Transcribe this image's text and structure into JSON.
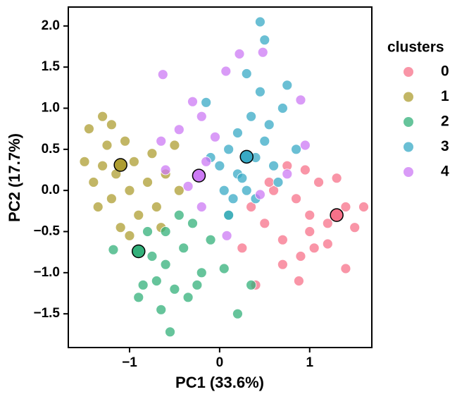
{
  "chart_data": {
    "type": "scatter",
    "xlabel": "PC1 (33.6%)",
    "ylabel": "PC2 (17.7%)",
    "legend_title": "clusters",
    "legend_position": "outside right",
    "xlim": [
      -1.68,
      1.69
    ],
    "ylim": [
      -1.91,
      2.23
    ],
    "xticks": [
      {
        "value": -1,
        "label": "−1"
      },
      0,
      1
    ],
    "yticks": [
      {
        "value": -1.5,
        "label": "−1.5"
      },
      {
        "value": -1,
        "label": "−1.0"
      },
      {
        "value": -0.5,
        "label": "−0.5"
      },
      {
        "value": 0,
        "label": "0.0"
      },
      0.5,
      {
        "value": 1,
        "label": "1.0"
      },
      1.5,
      {
        "value": 2,
        "label": "2.0"
      }
    ],
    "series": [
      {
        "name": "0",
        "color": "#f77189",
        "x": [
          0.85,
          1.0,
          1.2,
          1.4,
          0.7,
          0.9,
          1.1,
          1.3,
          0.6,
          0.5,
          1.5,
          0.4,
          0.7,
          1.0,
          1.2,
          0.95,
          0.35,
          1.4,
          0.25,
          0.88,
          1.6,
          0.75,
          1.05,
          0.55
        ],
        "y": [
          -0.1,
          -0.3,
          -0.4,
          -0.2,
          -0.6,
          -0.8,
          0.1,
          0.15,
          0.0,
          -0.4,
          -0.45,
          -1.15,
          -0.9,
          -0.5,
          -0.65,
          0.25,
          -0.2,
          -0.95,
          -0.7,
          -1.1,
          -0.2,
          0.3,
          -0.7,
          0.1
        ]
      },
      {
        "name": "1",
        "color": "#ae9d31",
        "x": [
          -1.3,
          -1.2,
          -1.4,
          -1.5,
          -1.0,
          -0.9,
          -1.1,
          -0.8,
          -0.6,
          -0.5,
          -1.25,
          -1.35,
          -1.05,
          -0.7,
          -1.15,
          -1.3,
          -0.95,
          -0.75,
          -1.2,
          -0.45,
          -1.45,
          -1.0,
          -0.65
        ],
        "y": [
          0.3,
          0.8,
          0.1,
          0.35,
          0.0,
          -0.3,
          -0.45,
          0.1,
          0.2,
          0.55,
          0.55,
          -0.2,
          0.6,
          -0.2,
          0.2,
          0.9,
          0.35,
          0.45,
          -0.1,
          0.0,
          0.75,
          -0.55,
          -0.45
        ]
      },
      {
        "name": "2",
        "color": "#33b07a",
        "x": [
          -1.18,
          -0.8,
          -0.6,
          -0.5,
          -0.9,
          -0.7,
          -0.4,
          -0.3,
          -0.2,
          -0.55,
          -0.65,
          -0.85,
          -0.1,
          0.05,
          0.2,
          -0.45,
          -0.75,
          -0.35,
          0.35,
          0.1,
          -0.25,
          -0.6
        ],
        "y": [
          -0.72,
          -0.5,
          -0.9,
          -1.2,
          -1.3,
          -1.1,
          -0.7,
          -0.4,
          -1.0,
          -1.72,
          -1.45,
          -1.15,
          -0.6,
          -0.95,
          -1.5,
          -0.3,
          -0.8,
          -1.3,
          -1.15,
          -0.3,
          -1.15,
          -0.5
        ]
      },
      {
        "name": "3",
        "color": "#38a9c5",
        "x": [
          0.0,
          0.1,
          0.2,
          0.4,
          0.5,
          0.6,
          0.3,
          -0.1,
          0.15,
          0.45,
          0.5,
          0.45,
          0.7,
          0.75,
          0.35,
          0.2,
          0.55,
          0.05,
          0.3,
          0.65,
          -0.15,
          0.1,
          0.85,
          0.25,
          0.4
        ],
        "y": [
          0.3,
          0.5,
          0.2,
          0.4,
          0.6,
          0.3,
          0.0,
          0.4,
          -0.1,
          2.05,
          1.83,
          1.2,
          1.0,
          1.28,
          0.9,
          0.7,
          0.8,
          0.0,
          1.42,
          0.1,
          1.07,
          -0.3,
          0.5,
          0.15,
          -0.1
        ]
      },
      {
        "name": "4",
        "color": "#cc7af4",
        "x": [
          -0.63,
          -0.3,
          -0.45,
          -0.2,
          0.07,
          0.48,
          0.22,
          0.9,
          -0.05,
          -0.6,
          -0.35,
          -0.2,
          0.08,
          0.45,
          0.75,
          -0.15,
          0.95,
          -0.65
        ],
        "y": [
          1.41,
          1.08,
          0.74,
          0.9,
          1.45,
          1.68,
          1.66,
          1.1,
          0.65,
          0.25,
          0.05,
          -0.2,
          -0.55,
          -0.05,
          0.2,
          0.35,
          0.55,
          0.6
        ]
      }
    ],
    "centroids": {
      "x": [
        1.3,
        -1.1,
        -0.9,
        0.3,
        -0.23
      ],
      "y": [
        -0.3,
        0.31,
        -0.74,
        0.41,
        0.18
      ]
    }
  }
}
